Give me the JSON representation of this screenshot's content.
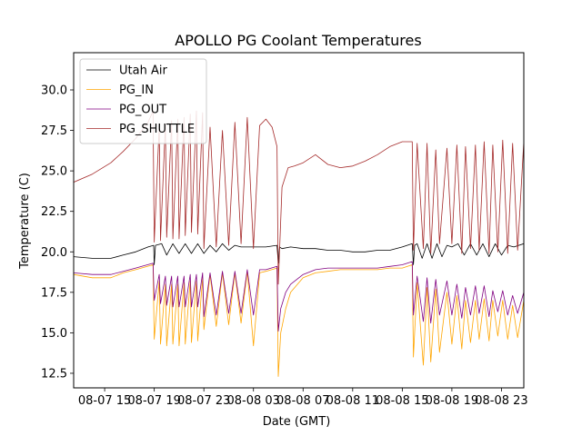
{
  "chart_data": {
    "type": "line",
    "title": "APOLLO PG Coolant Temperatures",
    "xlabel": "Date (GMT)",
    "ylabel": "Temperature (C)",
    "xlim": [
      12.5,
      48.8
    ],
    "ylim": [
      11.6,
      32.3
    ],
    "x_unit": "hours since 08-07 00:00 GMT",
    "x_ticks": [
      {
        "value": 15,
        "label": "08-07 15"
      },
      {
        "value": 19,
        "label": "08-07 19"
      },
      {
        "value": 23,
        "label": "08-07 23"
      },
      {
        "value": 27,
        "label": "08-08 03"
      },
      {
        "value": 31,
        "label": "08-08 07"
      },
      {
        "value": 35,
        "label": "08-08 11"
      },
      {
        "value": 39,
        "label": "08-08 15"
      },
      {
        "value": 43,
        "label": "08-08 19"
      },
      {
        "value": 47,
        "label": "08-08 23"
      }
    ],
    "y_ticks": [
      {
        "value": 12.5,
        "label": "12.5"
      },
      {
        "value": 15.0,
        "label": "15.0"
      },
      {
        "value": 17.5,
        "label": "17.5"
      },
      {
        "value": 20.0,
        "label": "20.0"
      },
      {
        "value": 22.5,
        "label": "22.5"
      },
      {
        "value": 25.0,
        "label": "25.0"
      },
      {
        "value": 27.5,
        "label": "27.5"
      },
      {
        "value": 30.0,
        "label": "30.0"
      }
    ],
    "legend_position": "top-left",
    "series": [
      {
        "name": "Utah Air",
        "color": "#000000",
        "x": [
          12.5,
          14.0,
          15.5,
          16.5,
          17.5,
          18.5,
          18.95,
          19.0,
          19.1,
          19.6,
          20.0,
          20.5,
          21.0,
          21.5,
          22.0,
          22.5,
          23.0,
          23.5,
          24.0,
          24.5,
          25.0,
          25.5,
          26.0,
          27.0,
          28.0,
          28.9,
          29.0,
          29.1,
          29.3,
          30.0,
          31.0,
          32.0,
          33.0,
          34.0,
          35.0,
          36.0,
          37.0,
          38.0,
          39.0,
          39.8,
          39.9,
          40.0,
          40.2,
          40.6,
          41.0,
          41.4,
          41.8,
          42.2,
          42.6,
          43.0,
          43.5,
          44.0,
          44.5,
          45.0,
          45.5,
          46.0,
          46.5,
          47.0,
          47.5,
          48.0,
          48.8
        ],
        "y": [
          19.7,
          19.6,
          19.6,
          19.8,
          20.0,
          20.3,
          20.4,
          19.2,
          20.4,
          20.5,
          19.8,
          20.5,
          19.9,
          20.5,
          19.9,
          20.5,
          19.9,
          20.4,
          20.0,
          20.5,
          20.1,
          20.4,
          20.3,
          20.3,
          20.3,
          20.4,
          19.3,
          20.3,
          20.2,
          20.3,
          20.2,
          20.2,
          20.1,
          20.1,
          20.0,
          20.0,
          20.1,
          20.1,
          20.3,
          20.5,
          19.2,
          20.4,
          20.5,
          19.6,
          20.5,
          19.6,
          20.5,
          19.7,
          20.4,
          20.3,
          20.5,
          19.8,
          20.5,
          19.8,
          20.5,
          19.7,
          20.5,
          19.8,
          20.4,
          20.3,
          20.5
        ]
      },
      {
        "name": "PG_IN",
        "color": "#ffa500",
        "x": [
          12.5,
          14.0,
          15.5,
          16.5,
          17.5,
          18.9,
          19.0,
          19.4,
          19.5,
          19.9,
          20.0,
          20.4,
          20.5,
          20.9,
          21.0,
          21.4,
          21.5,
          21.9,
          22.0,
          22.4,
          22.5,
          22.9,
          23.0,
          23.5,
          24.0,
          24.5,
          25.0,
          25.5,
          26.0,
          26.5,
          27.0,
          27.5,
          28.0,
          28.9,
          29.0,
          29.2,
          29.6,
          30.0,
          31.0,
          32.0,
          33.0,
          34.0,
          35.0,
          36.0,
          37.0,
          38.0,
          39.0,
          39.8,
          39.9,
          40.2,
          40.7,
          41.0,
          41.3,
          41.7,
          42.0,
          42.6,
          43.0,
          43.4,
          43.8,
          44.1,
          44.5,
          44.9,
          45.2,
          45.6,
          46.0,
          46.3,
          46.7,
          47.1,
          47.5,
          47.9,
          48.3,
          48.8
        ],
        "y": [
          18.6,
          18.4,
          18.4,
          18.7,
          18.9,
          19.2,
          14.6,
          18.2,
          14.3,
          18.0,
          14.2,
          18.0,
          14.3,
          18.0,
          14.2,
          18.1,
          14.3,
          18.2,
          14.4,
          18.2,
          14.5,
          18.4,
          15.2,
          18.6,
          15.4,
          18.7,
          15.5,
          18.7,
          15.6,
          18.8,
          14.2,
          18.7,
          18.8,
          19.0,
          12.3,
          15.0,
          16.5,
          17.5,
          18.4,
          18.7,
          18.8,
          18.9,
          18.9,
          18.9,
          18.9,
          19.0,
          19.0,
          19.2,
          13.5,
          18.1,
          13.0,
          17.8,
          13.2,
          17.7,
          13.8,
          17.5,
          14.3,
          17.3,
          14.0,
          17.0,
          14.4,
          17.0,
          14.6,
          17.1,
          14.5,
          17.0,
          14.8,
          17.0,
          14.6,
          16.7,
          14.7,
          17.0
        ]
      },
      {
        "name": "PG_OUT",
        "color": "#800080",
        "x": [
          12.5,
          14.0,
          15.5,
          16.5,
          17.5,
          18.9,
          19.0,
          19.4,
          19.5,
          19.9,
          20.0,
          20.4,
          20.5,
          20.9,
          21.0,
          21.4,
          21.5,
          21.9,
          22.0,
          22.4,
          22.5,
          22.9,
          23.0,
          23.5,
          24.0,
          24.5,
          25.0,
          25.5,
          26.0,
          26.5,
          27.0,
          27.5,
          28.0,
          28.9,
          29.0,
          29.2,
          29.6,
          30.0,
          31.0,
          32.0,
          33.0,
          34.0,
          35.0,
          36.0,
          37.0,
          38.0,
          39.0,
          39.8,
          39.9,
          40.2,
          40.7,
          41.0,
          41.3,
          41.7,
          42.0,
          42.6,
          43.0,
          43.4,
          43.8,
          44.1,
          44.5,
          44.9,
          45.2,
          45.6,
          46.0,
          46.3,
          46.7,
          47.1,
          47.5,
          47.9,
          48.3,
          48.8
        ],
        "y": [
          18.7,
          18.6,
          18.6,
          18.8,
          19.0,
          19.3,
          17.0,
          18.6,
          16.8,
          18.5,
          16.7,
          18.5,
          16.6,
          18.5,
          16.6,
          18.5,
          16.6,
          18.6,
          16.6,
          18.6,
          16.6,
          18.7,
          16.0,
          18.7,
          16.1,
          18.8,
          16.2,
          18.8,
          16.2,
          18.9,
          16.1,
          18.9,
          18.9,
          19.1,
          15.1,
          16.5,
          17.5,
          18.0,
          18.6,
          18.9,
          19.0,
          19.0,
          19.0,
          19.0,
          19.0,
          19.1,
          19.2,
          19.4,
          16.1,
          18.5,
          15.7,
          18.4,
          15.6,
          18.3,
          16.1,
          18.2,
          16.1,
          18.0,
          15.9,
          17.8,
          16.1,
          17.9,
          16.2,
          17.9,
          16.0,
          17.6,
          16.3,
          17.6,
          16.1,
          17.3,
          16.2,
          17.5
        ]
      },
      {
        "name": "PG_SHUTTLE",
        "color": "#a52a2a",
        "x": [
          12.5,
          14.0,
          15.5,
          16.5,
          17.5,
          18.0,
          18.5,
          18.9,
          19.0,
          19.4,
          19.5,
          19.9,
          20.0,
          20.4,
          20.5,
          20.9,
          21.0,
          21.4,
          21.5,
          21.9,
          22.0,
          22.4,
          22.5,
          22.9,
          23.0,
          23.5,
          24.0,
          24.5,
          25.0,
          25.5,
          26.0,
          26.5,
          27.0,
          27.5,
          28.0,
          28.5,
          28.9,
          29.0,
          29.3,
          29.8,
          30.3,
          31.0,
          32.0,
          33.0,
          34.0,
          35.0,
          36.0,
          37.0,
          38.0,
          39.0,
          39.8,
          39.9,
          40.2,
          40.7,
          41.0,
          41.3,
          41.7,
          42.0,
          42.6,
          43.0,
          43.4,
          43.8,
          44.1,
          44.5,
          44.9,
          45.2,
          45.6,
          46.0,
          46.3,
          46.7,
          47.1,
          47.5,
          47.9,
          48.3,
          48.8
        ],
        "y": [
          24.3,
          24.8,
          25.5,
          26.2,
          27.0,
          27.5,
          28.0,
          28.7,
          20.6,
          27.8,
          20.7,
          27.9,
          20.9,
          28.1,
          20.8,
          28.2,
          20.8,
          28.3,
          21.0,
          28.5,
          21.2,
          28.7,
          21.1,
          28.6,
          20.2,
          27.7,
          20.3,
          27.5,
          20.4,
          28.0,
          20.5,
          28.3,
          20.2,
          27.8,
          28.2,
          27.7,
          26.5,
          18.0,
          24.0,
          25.2,
          25.3,
          25.5,
          26.0,
          25.4,
          25.2,
          25.3,
          25.6,
          26.0,
          26.5,
          26.8,
          26.8,
          20.1,
          26.7,
          20.2,
          26.7,
          19.9,
          26.3,
          20.5,
          26.4,
          20.5,
          26.6,
          19.9,
          26.5,
          20.2,
          26.6,
          20.1,
          26.8,
          19.9,
          26.6,
          20.0,
          26.9,
          19.9,
          26.7,
          20.1,
          26.8
        ]
      }
    ]
  }
}
